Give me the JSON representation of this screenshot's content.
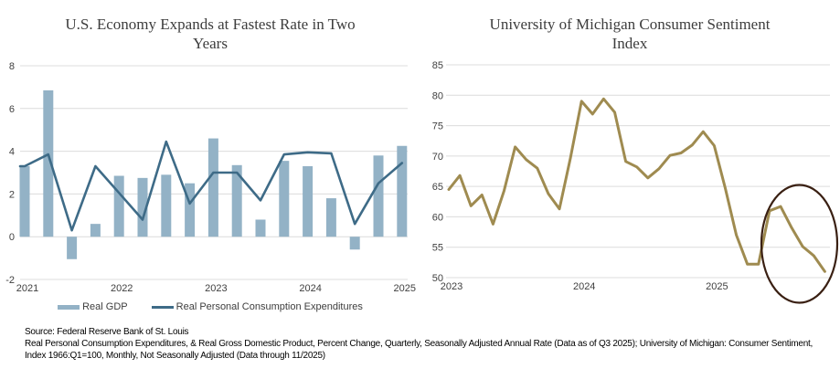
{
  "chart_data": [
    {
      "id": "gdp-pce",
      "type": "bar",
      "title": "U.S. Economy Expands at Fastest Rate in Two Years",
      "title_lines": [
        "U.S. Economy Expands at Fastest Rate in Two",
        "Years"
      ],
      "x_unit": "quarter",
      "ylim": [
        -2,
        8
      ],
      "yticks": [
        8,
        6,
        4,
        2,
        0,
        -2
      ],
      "x_tick_labels": [
        "2021",
        "2022",
        "2023",
        "2024",
        "2025"
      ],
      "x_tick_indices": [
        0,
        4,
        8,
        12,
        16
      ],
      "grid": true,
      "legend_position": "bottom",
      "series": [
        {
          "name": "Real GDP",
          "kind": "bar",
          "color": "#93b2c6",
          "values": [
            3.3,
            6.85,
            -1.05,
            0.6,
            2.85,
            2.75,
            2.9,
            2.5,
            4.6,
            3.35,
            0.8,
            3.55,
            3.3,
            1.8,
            -0.6,
            3.8,
            4.25
          ]
        },
        {
          "name": "Real Personal Consumption Expenditures",
          "kind": "line",
          "color": "#3e6b87",
          "values": [
            3.3,
            3.85,
            0.3,
            3.3,
            2.05,
            0.8,
            4.45,
            1.55,
            3.0,
            3.0,
            1.7,
            3.85,
            3.95,
            3.9,
            0.6,
            2.5,
            3.45
          ]
        }
      ]
    },
    {
      "id": "sentiment",
      "type": "line",
      "title": "University of Michigan Consumer Sentiment Index",
      "title_lines": [
        "University of Michigan Consumer Sentiment",
        "Index"
      ],
      "x_unit": "month",
      "ylim": [
        50,
        85
      ],
      "yticks": [
        85,
        80,
        75,
        70,
        65,
        60,
        55,
        50
      ],
      "x_tick_labels": [
        "2023",
        "2024",
        "2025"
      ],
      "x_tick_indices": [
        0,
        12,
        24
      ],
      "grid": true,
      "series": [
        {
          "name": "Consumer Sentiment",
          "kind": "line",
          "color": "#9f8b50",
          "values": [
            64.5,
            66.8,
            61.8,
            63.6,
            58.8,
            64.3,
            71.5,
            69.4,
            68.0,
            63.8,
            61.3,
            69.7,
            79.0,
            76.9,
            79.4,
            77.2,
            69.1,
            68.2,
            66.4,
            67.9,
            70.1,
            70.5,
            71.8,
            74.0,
            71.7,
            64.7,
            57.0,
            52.2,
            52.2,
            61.0,
            61.7,
            58.2,
            55.1,
            53.6,
            51.0
          ]
        }
      ],
      "annotation": {
        "shape": "ellipse",
        "color": "#3a2013",
        "highlights": "2025 decline"
      }
    }
  ],
  "colors": {
    "grid": "#dcdcdc",
    "axis_text": "#404040",
    "title_text": "#3d3d3d"
  },
  "source": {
    "lines": [
      "Source: Federal Reserve Bank of St. Louis",
      "Real Personal Consumption Expenditures, & Real Gross Domestic Product, Percent Change, Quarterly, Seasonally Adjusted Annual Rate (Data as of Q3 2025); University of Michigan: Consumer Sentiment,",
      "Index 1966:Q1=100, Monthly, Not Seasonally Adjusted (Data through 11/2025)"
    ]
  }
}
